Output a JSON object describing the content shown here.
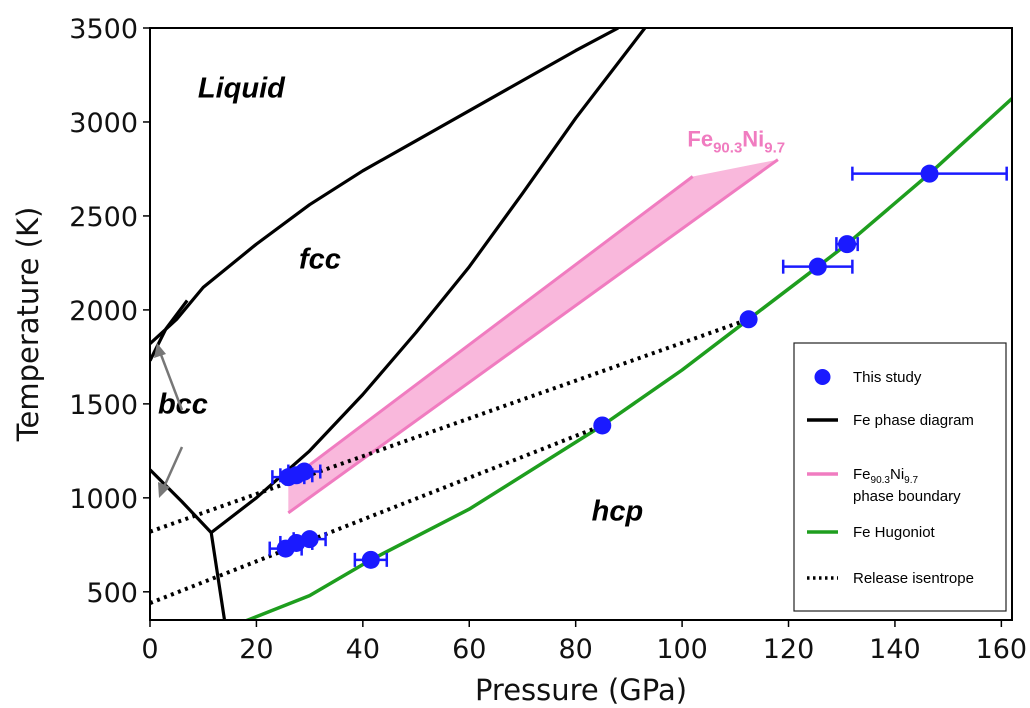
{
  "chart_data": {
    "type": "scatter",
    "xlabel": "Pressure (GPa)",
    "ylabel": "Temperature (K)",
    "xlim": [
      0,
      162
    ],
    "ylim": [
      350,
      3500
    ],
    "xticks": [
      0,
      20,
      40,
      60,
      80,
      100,
      120,
      140,
      160
    ],
    "yticks": [
      500,
      1000,
      1500,
      2000,
      2500,
      3000,
      3500
    ],
    "grid": false,
    "legend_position": "bottom-right",
    "phase_labels": [
      {
        "text": "Liquid",
        "x": 9,
        "y": 3130
      },
      {
        "text": "fcc",
        "x": 28,
        "y": 2220
      },
      {
        "text": "bcc",
        "x": 1.5,
        "y": 1450
      },
      {
        "text": "hcp",
        "x": 83,
        "y": 880
      }
    ],
    "alloy_label": {
      "base": "Fe",
      "sub1": "90.3",
      "mid": "Ni",
      "sub2": "9.7",
      "x": 101,
      "y": 2870
    },
    "series": [
      {
        "name": "This study",
        "kind": "points",
        "color": "#1a1aff",
        "points": [
          {
            "x": 26,
            "y": 1110,
            "xerr": 3
          },
          {
            "x": 27.5,
            "y": 1120,
            "xerr": 3
          },
          {
            "x": 29,
            "y": 1140,
            "xerr": 3
          },
          {
            "x": 25.5,
            "y": 730,
            "xerr": 3
          },
          {
            "x": 27.5,
            "y": 760,
            "xerr": 3
          },
          {
            "x": 30,
            "y": 780,
            "xerr": 3
          },
          {
            "x": 41.5,
            "y": 670,
            "xerr": 3
          },
          {
            "x": 85,
            "y": 1385,
            "xerr": 0
          },
          {
            "x": 112.5,
            "y": 1950,
            "xerr": 0
          },
          {
            "x": 125.5,
            "y": 2230,
            "xerr": 6.5
          },
          {
            "x": 131,
            "y": 2350,
            "xerr": 2
          },
          {
            "x": 146.5,
            "y": 2725,
            "xerr": 14.5
          }
        ]
      },
      {
        "name": "Fe phase diagram",
        "kind": "lines",
        "color": "#000000",
        "segments": [
          [
            [
              0,
              1820
            ],
            [
              5,
              1950
            ],
            [
              10,
              2120
            ],
            [
              20,
              2350
            ],
            [
              30,
              2560
            ],
            [
              40,
              2740
            ],
            [
              50,
              2900
            ],
            [
              60,
              3060
            ],
            [
              70,
              3220
            ],
            [
              80,
              3380
            ],
            [
              88,
              3500
            ]
          ],
          [
            [
              0,
              1730
            ],
            [
              3,
              1900
            ],
            [
              7,
              2050
            ]
          ],
          [
            [
              0,
              1150
            ],
            [
              6,
              980
            ],
            [
              11.5,
              815
            ],
            [
              14,
              350
            ]
          ],
          [
            [
              11.5,
              815
            ],
            [
              20,
              1000
            ],
            [
              30,
              1250
            ],
            [
              40,
              1550
            ],
            [
              50,
              1880
            ],
            [
              60,
              2230
            ],
            [
              70,
              2620
            ],
            [
              80,
              3020
            ],
            [
              93,
              3500
            ]
          ]
        ]
      },
      {
        "name": "Fe90.3Ni9.7 phase boundary",
        "kind": "band",
        "color": "#f07cc0",
        "fill": "#f9b8dc",
        "upper": [
          [
            26,
            1090
          ],
          [
            102,
            2710
          ],
          [
            118,
            2800
          ]
        ],
        "lower": [
          [
            26,
            920
          ],
          [
            118,
            2800
          ]
        ]
      },
      {
        "name": "Fe Hugoniot",
        "kind": "line",
        "color": "#1e9e1e",
        "points": [
          [
            18,
            345
          ],
          [
            30,
            480
          ],
          [
            41.5,
            670
          ],
          [
            60,
            940
          ],
          [
            85,
            1385
          ],
          [
            100,
            1680
          ],
          [
            112.5,
            1950
          ],
          [
            125.5,
            2230
          ],
          [
            131,
            2350
          ],
          [
            146.5,
            2725
          ],
          [
            162,
            3125
          ]
        ]
      },
      {
        "name": "Release isentrope",
        "kind": "dotted",
        "color": "#000000",
        "segments": [
          [
            [
              0,
              820
            ],
            [
              112.5,
              1950
            ]
          ],
          [
            [
              0,
              440
            ],
            [
              85,
              1385
            ]
          ]
        ]
      }
    ],
    "legend": [
      {
        "label": "This study",
        "kind": "marker",
        "color": "#1a1aff"
      },
      {
        "label": "Fe phase diagram",
        "kind": "line",
        "color": "#000000"
      },
      {
        "label_parts": [
          "Fe",
          "90.3",
          "Ni",
          "9.7"
        ],
        "label_line2": "phase boundary",
        "kind": "line",
        "color": "#f07cc0"
      },
      {
        "label": "Fe Hugoniot",
        "kind": "line",
        "color": "#1e9e1e"
      },
      {
        "label": "Release isentrope",
        "kind": "dotted",
        "color": "#000000"
      }
    ]
  }
}
